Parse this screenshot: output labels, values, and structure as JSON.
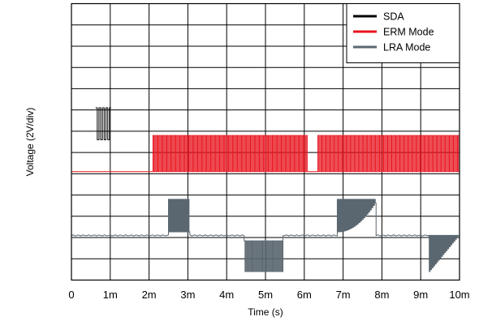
{
  "chart_data": {
    "type": "line",
    "xlabel": "Time (s)",
    "ylabel": "Voltage (2V/div)",
    "x_ticks": [
      "0",
      "1m",
      "2m",
      "3m",
      "4m",
      "5m",
      "6m",
      "7m",
      "8m",
      "9m",
      "10m"
    ],
    "xlim": [
      0,
      10
    ],
    "x_unit": "ms",
    "y_divisions": 13,
    "grid": true,
    "legend_position": "top-right",
    "series": [
      {
        "name": "SDA",
        "color": "#000000",
        "baseline_div": 8.1,
        "amplitude_div": 1.5,
        "segments": [
          {
            "start": 0.0,
            "end": 0.62,
            "state": "none"
          },
          {
            "start": 0.62,
            "end": 0.98,
            "state": "burst",
            "cycles": 4
          },
          {
            "start": 0.98,
            "end": 1.02,
            "state": "idle"
          }
        ]
      },
      {
        "name": "ERM Mode",
        "color": "#e8141e",
        "baseline_div": 5.1,
        "amplitude_div": 1.7,
        "segments": [
          {
            "start": 0.0,
            "end": 2.1,
            "state": "idle"
          },
          {
            "start": 2.1,
            "end": 6.1,
            "state": "burst",
            "cycles": 78
          },
          {
            "start": 6.1,
            "end": 6.35,
            "state": "idle"
          },
          {
            "start": 6.35,
            "end": 10.0,
            "state": "burst",
            "cycles": 70
          }
        ]
      },
      {
        "name": "LRA Mode",
        "color": "#5b6770",
        "baseline_div": 2.1,
        "amplitude_div": 1.7,
        "segments": [
          {
            "start": 0.0,
            "end": 2.5,
            "state": "idle"
          },
          {
            "start": 2.5,
            "end": 3.05,
            "state": "burst_up",
            "cycles": 14
          },
          {
            "start": 3.05,
            "end": 4.45,
            "state": "idle"
          },
          {
            "start": 4.45,
            "end": 5.45,
            "state": "burst_down",
            "cycles": 22
          },
          {
            "start": 5.45,
            "end": 6.85,
            "state": "idle"
          },
          {
            "start": 6.85,
            "end": 7.85,
            "state": "burst_up_decay",
            "cycles": 24
          },
          {
            "start": 7.85,
            "end": 9.2,
            "state": "idle"
          },
          {
            "start": 9.2,
            "end": 10.0,
            "state": "decay_down",
            "cycles": 20
          }
        ]
      }
    ]
  }
}
